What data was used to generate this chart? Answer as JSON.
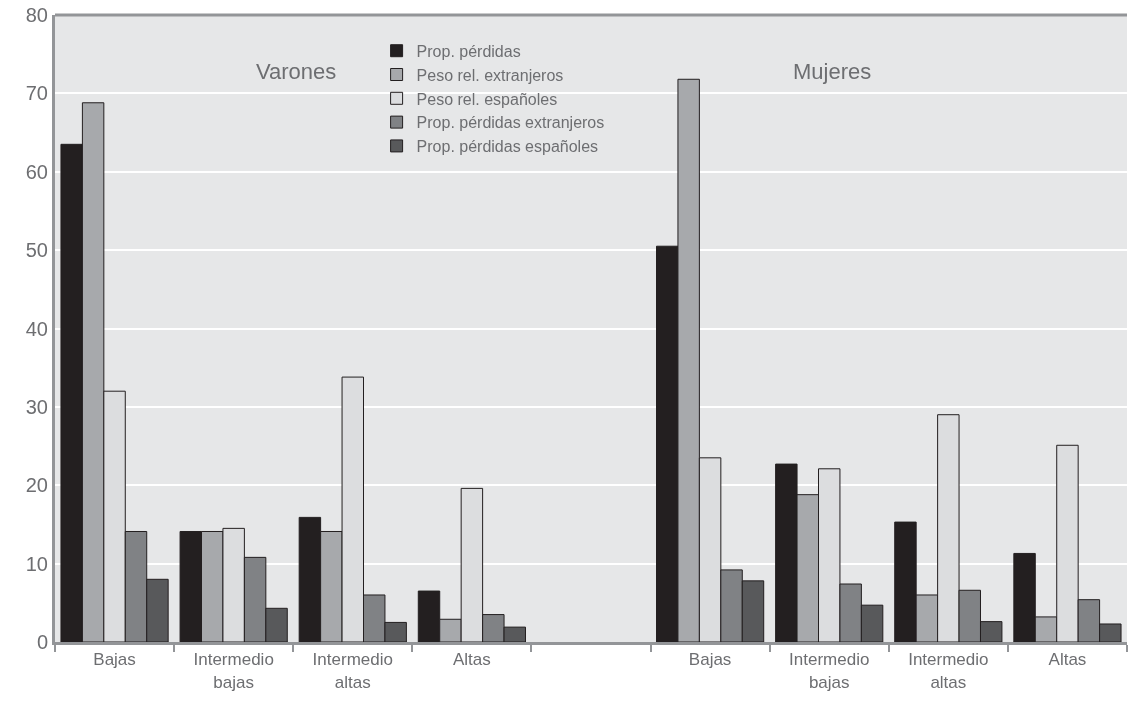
{
  "chart_data": {
    "type": "bar",
    "categories": [
      "Bajas",
      "Intermedio bajas",
      "Intermedio altas",
      "Altas",
      null,
      "Bajas",
      "Intermedio bajas",
      "Intermedio altas",
      "Altas"
    ],
    "series": [
      {
        "name": "Prop. pérdidas",
        "color": "#231f20",
        "values": [
          63.5,
          14.1,
          15.9,
          6.5,
          null,
          50.5,
          22.7,
          15.3,
          11.3
        ]
      },
      {
        "name": "Peso rel. extranjeros",
        "color": "#a7a9ac",
        "values": [
          68.8,
          14.1,
          14.1,
          2.9,
          null,
          71.8,
          18.8,
          6.0,
          3.2
        ]
      },
      {
        "name": "Peso rel. españoles",
        "color": "#dcdddf",
        "values": [
          32.0,
          14.5,
          33.8,
          19.6,
          null,
          23.5,
          22.1,
          29.0,
          25.1
        ]
      },
      {
        "name": "Prop. pérdidas extranjeros",
        "color": "#808285",
        "values": [
          14.1,
          10.8,
          6.0,
          3.5,
          null,
          9.2,
          7.4,
          6.6,
          5.4
        ]
      },
      {
        "name": "Prop. pérdidas españoles",
        "color": "#58595b",
        "values": [
          8.0,
          4.3,
          2.5,
          1.9,
          null,
          7.8,
          4.7,
          2.6,
          2.3
        ]
      }
    ],
    "annotations": [
      "Varones",
      "Mujeres"
    ],
    "ylim": [
      0,
      80
    ],
    "yticks": [
      0,
      10,
      20,
      30,
      40,
      50,
      60,
      70,
      80
    ],
    "grid": "y",
    "legend": "top"
  }
}
